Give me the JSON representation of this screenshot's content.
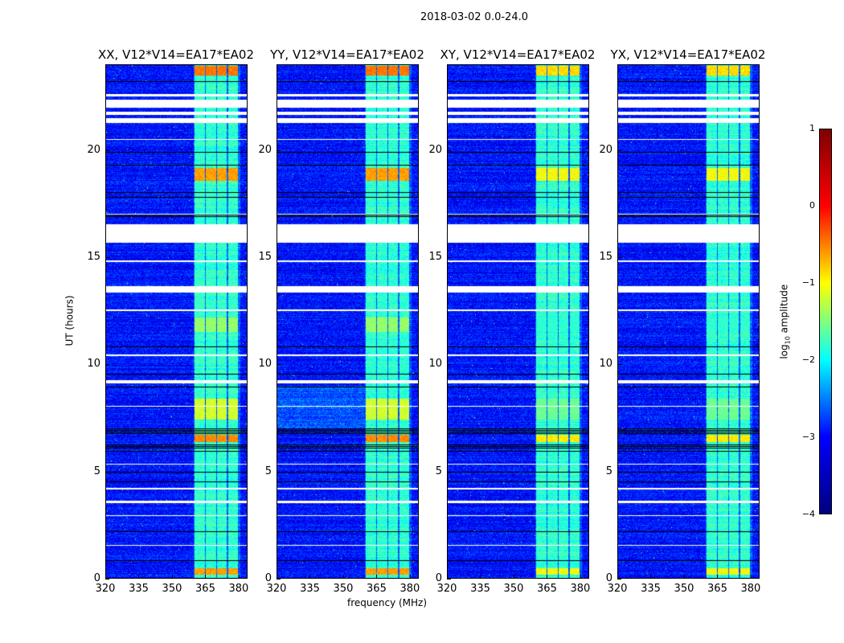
{
  "chart_data": {
    "type": "heatmap",
    "title": "2018-03-02 0.0-24.0",
    "xlabel": "frequency (MHz)",
    "ylabel": "UT (hours)",
    "xlim": [
      320,
      384
    ],
    "ylim": [
      0,
      24
    ],
    "xticks": [
      "320",
      "335",
      "350",
      "365",
      "380"
    ],
    "xtick_values": [
      320,
      335,
      350,
      365,
      380
    ],
    "yticks": [
      "0",
      "5",
      "10",
      "15",
      "20"
    ],
    "ytick_values": [
      0,
      5,
      10,
      15,
      20
    ],
    "panels": [
      {
        "title": "XX, V12*V14=EA17*EA02"
      },
      {
        "title": "YY, V12*V14=EA17*EA02"
      },
      {
        "title": "XY, V12*V14=EA17*EA02"
      },
      {
        "title": "YX, V12*V14=EA17*EA02"
      }
    ],
    "colorbar": {
      "label": "log10 amplitude",
      "label_main": "log",
      "label_sub": "10",
      "label_rest": " amplitude",
      "range": [
        -4,
        1
      ],
      "ticks": [
        "1",
        "0",
        "−1",
        "−2",
        "−3",
        "−4"
      ],
      "tick_values": [
        1,
        0,
        -1,
        -2,
        -3,
        -4
      ],
      "colormap": "jet"
    },
    "background_level": -3.3,
    "rfi_subbands_mhz": [
      [
        360.3,
        365.1
      ],
      [
        365.5,
        370.2
      ],
      [
        370.6,
        374.9
      ],
      [
        375.6,
        379.9
      ]
    ],
    "rfi_level": -1.9,
    "strong_rfi_hours": [
      [
        0.15,
        0.45,
        -0.4
      ],
      [
        6.35,
        6.7,
        -0.3
      ],
      [
        7.4,
        8.4,
        -1.1
      ],
      [
        18.6,
        19.2,
        -0.4
      ],
      [
        23.5,
        23.95,
        -0.2
      ],
      [
        11.5,
        12.2,
        -1.4
      ]
    ],
    "flagged_hours_white": [
      [
        15.7,
        16.55
      ],
      [
        13.37,
        13.67
      ],
      [
        21.3,
        21.5
      ],
      [
        21.65,
        21.8
      ],
      [
        22.0,
        22.4
      ],
      [
        22.55,
        22.65
      ],
      [
        9.1,
        9.25
      ],
      [
        3.5,
        3.6
      ],
      [
        2.9,
        2.95
      ],
      [
        1.5,
        1.56
      ],
      [
        14.8,
        14.85
      ],
      [
        12.5,
        12.55
      ],
      [
        10.4,
        10.45
      ],
      [
        20.5,
        20.55
      ],
      [
        17.0,
        17.05
      ],
      [
        4.15,
        4.2
      ],
      [
        8.0,
        8.05
      ],
      [
        5.3,
        5.35
      ]
    ],
    "flagged_hours_black": [
      [
        6.05,
        6.3
      ],
      [
        6.7,
        7.05
      ],
      [
        16.9,
        17.0
      ],
      [
        17.8,
        17.85
      ],
      [
        18.0,
        18.05
      ],
      [
        19.3,
        19.35
      ],
      [
        19.55,
        19.6
      ],
      [
        19.9,
        19.95
      ],
      [
        23.2,
        23.25
      ],
      [
        4.9,
        4.95
      ],
      [
        4.45,
        4.5
      ],
      [
        2.15,
        2.2
      ],
      [
        0.8,
        0.85
      ],
      [
        13.9,
        13.95
      ],
      [
        14.3,
        14.35
      ],
      [
        10.8,
        10.85
      ],
      [
        9.5,
        9.55
      ],
      [
        8.9,
        8.95
      ],
      [
        5.9,
        5.95
      ]
    ]
  }
}
